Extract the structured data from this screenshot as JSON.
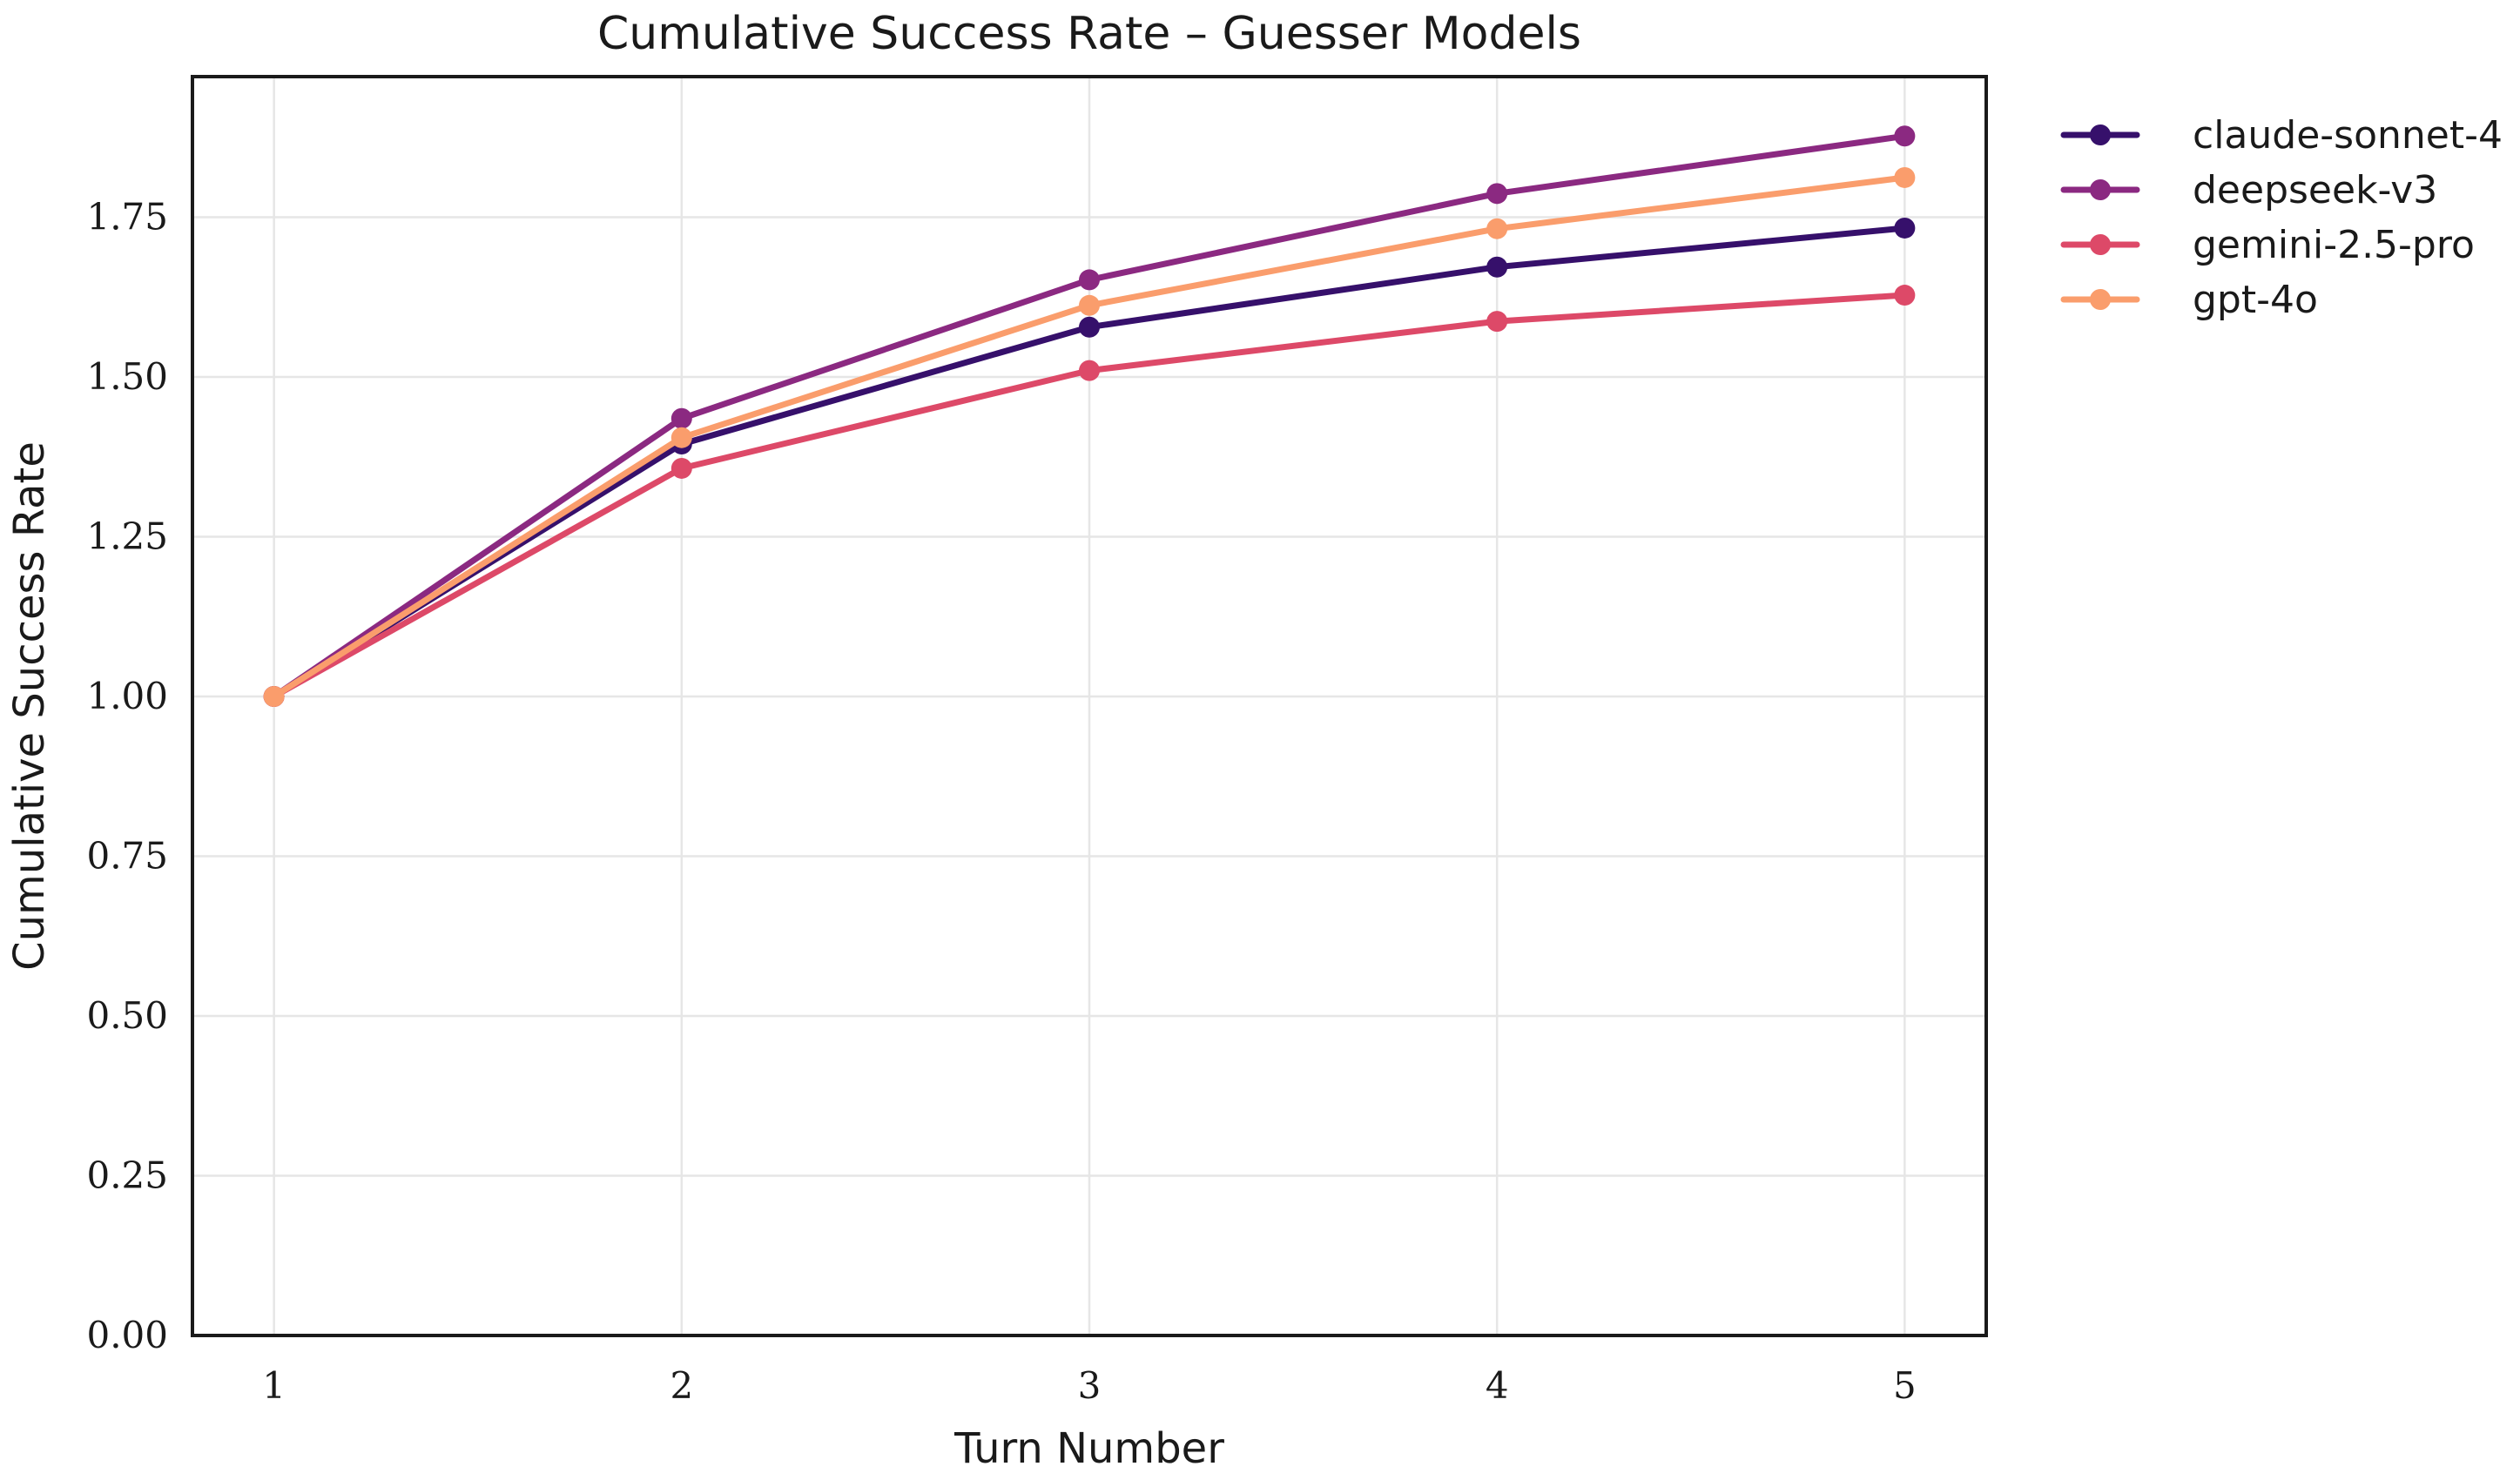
{
  "chart_data": {
    "type": "line",
    "title": "Cumulative Success Rate – Guesser Models",
    "xlabel": "Turn Number",
    "ylabel": "Cumulative Success Rate",
    "x": [
      1,
      2,
      3,
      4,
      5
    ],
    "x_tick_labels": [
      "1",
      "2",
      "3",
      "4",
      "5"
    ],
    "xlim": [
      0.8,
      5.2
    ],
    "ylim": [
      0.0,
      1.97
    ],
    "y_ticks": [
      0.0,
      0.25,
      0.5,
      0.75,
      1.0,
      1.25,
      1.5,
      1.75
    ],
    "y_tick_labels": [
      "0.00",
      "0.25",
      "0.50",
      "0.75",
      "1.00",
      "1.25",
      "1.50",
      "1.75"
    ],
    "grid": true,
    "legend_position": "outside-top-right",
    "series": [
      {
        "name": "claude-sonnet-4",
        "color": "#36106b",
        "values": [
          1.0,
          1.395,
          1.578,
          1.672,
          1.733
        ]
      },
      {
        "name": "deepseek-v3",
        "color": "#8b2981",
        "values": [
          1.0,
          1.435,
          1.652,
          1.787,
          1.877
        ]
      },
      {
        "name": "gemini-2.5-pro",
        "color": "#dd4968",
        "values": [
          1.0,
          1.357,
          1.51,
          1.587,
          1.628
        ]
      },
      {
        "name": "gpt-4o",
        "color": "#fa9d6c",
        "values": [
          1.0,
          1.405,
          1.612,
          1.732,
          1.812
        ]
      }
    ]
  }
}
